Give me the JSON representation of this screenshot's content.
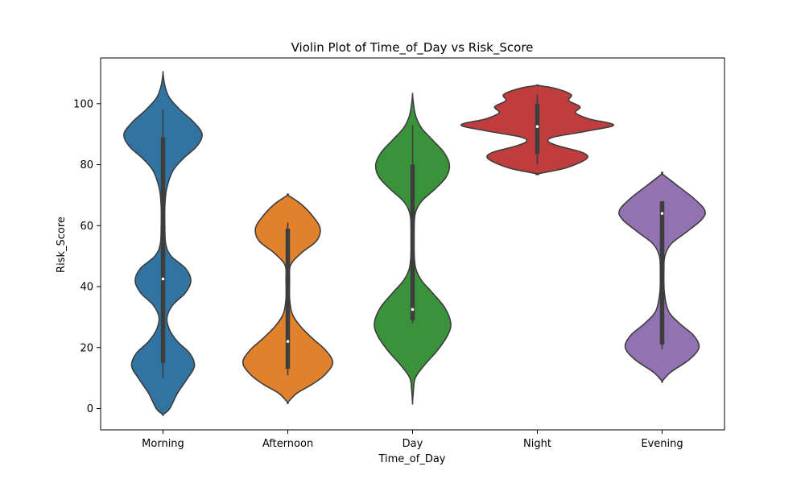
{
  "chart_data": {
    "type": "violin",
    "title": "Violin Plot of Time_of_Day vs Risk_Score",
    "xlabel": "Time_of_Day",
    "ylabel": "Risk_Score",
    "ylim": [
      -7,
      115
    ],
    "yticks": [
      "0",
      "20",
      "40",
      "60",
      "80",
      "100"
    ],
    "grid": false,
    "series": [
      {
        "category": "Morning",
        "color": "#3274a1",
        "min": 10,
        "q1": 15,
        "median": 42.5,
        "q3": 89,
        "max": 98,
        "profile": [
          [
            -2,
            0
          ],
          [
            0,
            0.15
          ],
          [
            5,
            0.32
          ],
          [
            10,
            0.55
          ],
          [
            14,
            0.7
          ],
          [
            18,
            0.6
          ],
          [
            22,
            0.32
          ],
          [
            26,
            0.14
          ],
          [
            30,
            0.09
          ],
          [
            34,
            0.22
          ],
          [
            38,
            0.5
          ],
          [
            42,
            0.62
          ],
          [
            46,
            0.5
          ],
          [
            50,
            0.18
          ],
          [
            54,
            0.06
          ],
          [
            60,
            0.04
          ],
          [
            66,
            0.04
          ],
          [
            72,
            0.08
          ],
          [
            78,
            0.22
          ],
          [
            82,
            0.45
          ],
          [
            86,
            0.75
          ],
          [
            90,
            0.87
          ],
          [
            94,
            0.68
          ],
          [
            98,
            0.38
          ],
          [
            102,
            0.14
          ],
          [
            106,
            0.04
          ],
          [
            110,
            0
          ]
        ]
      },
      {
        "category": "Afternoon",
        "color": "#e1812c",
        "min": 11,
        "q1": 13,
        "median": 22,
        "q3": 59,
        "max": 61,
        "profile": [
          [
            2,
            0
          ],
          [
            5,
            0.2
          ],
          [
            8,
            0.55
          ],
          [
            11,
            0.82
          ],
          [
            15,
            1.0
          ],
          [
            19,
            0.85
          ],
          [
            23,
            0.55
          ],
          [
            27,
            0.28
          ],
          [
            31,
            0.1
          ],
          [
            36,
            0.04
          ],
          [
            42,
            0.04
          ],
          [
            47,
            0.06
          ],
          [
            51,
            0.3
          ],
          [
            55,
            0.64
          ],
          [
            59,
            0.72
          ],
          [
            63,
            0.56
          ],
          [
            67,
            0.3
          ],
          [
            70,
            0
          ]
        ]
      },
      {
        "category": "Day",
        "color": "#3a923a",
        "min": 28,
        "q1": 29,
        "median": 32.5,
        "q3": 80,
        "max": 93,
        "profile": [
          [
            2,
            0
          ],
          [
            6,
            0.02
          ],
          [
            10,
            0.06
          ],
          [
            14,
            0.25
          ],
          [
            19,
            0.55
          ],
          [
            24,
            0.78
          ],
          [
            28,
            0.85
          ],
          [
            33,
            0.72
          ],
          [
            38,
            0.44
          ],
          [
            42,
            0.2
          ],
          [
            46,
            0.07
          ],
          [
            52,
            0.03
          ],
          [
            58,
            0.03
          ],
          [
            64,
            0.06
          ],
          [
            68,
            0.2
          ],
          [
            72,
            0.5
          ],
          [
            76,
            0.75
          ],
          [
            80,
            0.82
          ],
          [
            84,
            0.7
          ],
          [
            88,
            0.45
          ],
          [
            92,
            0.2
          ],
          [
            96,
            0.07
          ],
          [
            100,
            0.02
          ],
          [
            103,
            0
          ]
        ]
      },
      {
        "category": "Night",
        "color": "#c03d3e",
        "min": 80,
        "q1": 83.5,
        "median": 92.5,
        "q3": 100,
        "max": 103,
        "profile": [
          [
            77,
            0
          ],
          [
            79,
            0.65
          ],
          [
            82,
            1.1
          ],
          [
            84,
            1.0
          ],
          [
            86,
            0.5
          ],
          [
            87.5,
            0.25
          ],
          [
            89,
            0.35
          ],
          [
            91,
            1.1
          ],
          [
            93,
            1.7
          ],
          [
            95,
            1.15
          ],
          [
            97,
            0.85
          ],
          [
            99,
            0.95
          ],
          [
            101,
            0.7
          ],
          [
            103,
            0.75
          ],
          [
            105,
            0.4
          ],
          [
            106,
            0
          ]
        ]
      },
      {
        "category": "Evening",
        "color": "#9372b2",
        "min": 19.5,
        "q1": 21,
        "median": 64,
        "q3": 68,
        "max": 68,
        "profile": [
          [
            9,
            0
          ],
          [
            12,
            0.2
          ],
          [
            16,
            0.6
          ],
          [
            20,
            0.82
          ],
          [
            24,
            0.7
          ],
          [
            28,
            0.38
          ],
          [
            32,
            0.14
          ],
          [
            38,
            0.05
          ],
          [
            45,
            0.04
          ],
          [
            50,
            0.06
          ],
          [
            54,
            0.2
          ],
          [
            58,
            0.55
          ],
          [
            62,
            0.88
          ],
          [
            65,
            0.95
          ],
          [
            69,
            0.7
          ],
          [
            73,
            0.35
          ],
          [
            77,
            0
          ]
        ]
      }
    ],
    "max_halfwidth_ref": 1.0,
    "halfwidth_scale_units": 0.36
  }
}
